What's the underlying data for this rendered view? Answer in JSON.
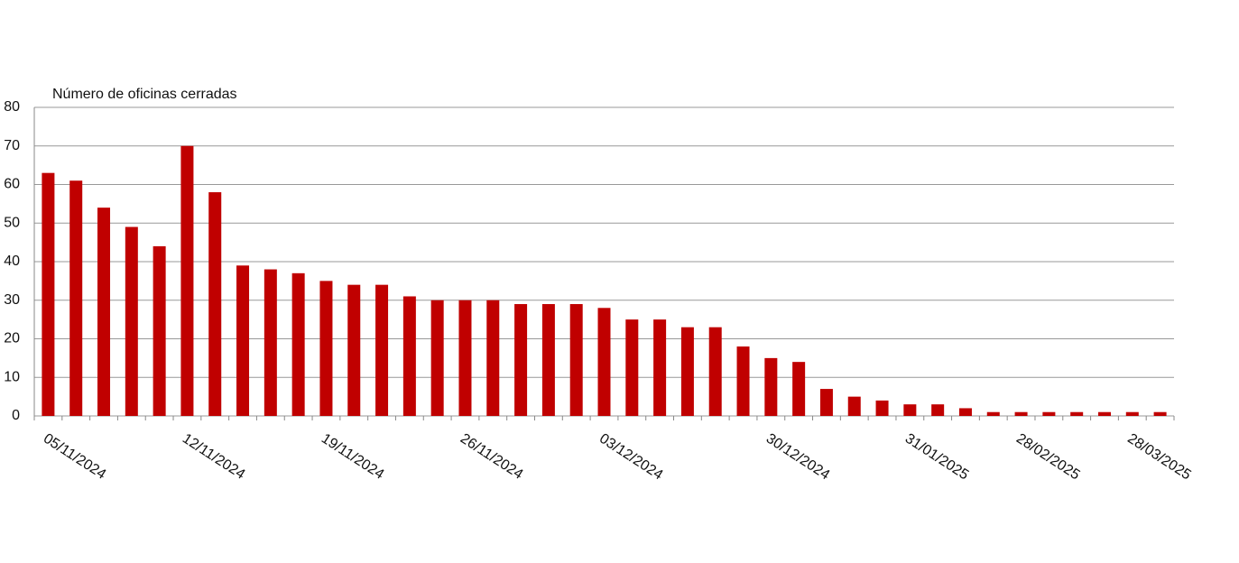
{
  "chart_data": {
    "type": "bar",
    "y_label": "Número de oficinas cerradas",
    "categories": [
      "05/11/2024",
      null,
      null,
      null,
      null,
      "12/11/2024",
      null,
      null,
      null,
      null,
      "19/11/2024",
      null,
      null,
      null,
      null,
      "26/11/2024",
      null,
      null,
      null,
      null,
      "03/12/2024",
      null,
      null,
      null,
      null,
      null,
      "30/12/2024",
      null,
      null,
      null,
      null,
      "31/01/2025",
      null,
      null,
      null,
      "28/02/2025",
      null,
      null,
      null,
      "28/03/2025",
      null
    ],
    "values": [
      63,
      61,
      54,
      49,
      44,
      70,
      58,
      39,
      38,
      37,
      35,
      34,
      34,
      31,
      30,
      30,
      30,
      29,
      29,
      29,
      28,
      25,
      25,
      23,
      23,
      18,
      15,
      14,
      7,
      5,
      4,
      3,
      3,
      2,
      1,
      1,
      1,
      1,
      1,
      1,
      1
    ],
    "color": "#c00000",
    "ylim": [
      0,
      80
    ],
    "yticks": [
      0,
      10,
      20,
      30,
      40,
      50,
      60,
      70,
      80
    ],
    "grid": true
  }
}
